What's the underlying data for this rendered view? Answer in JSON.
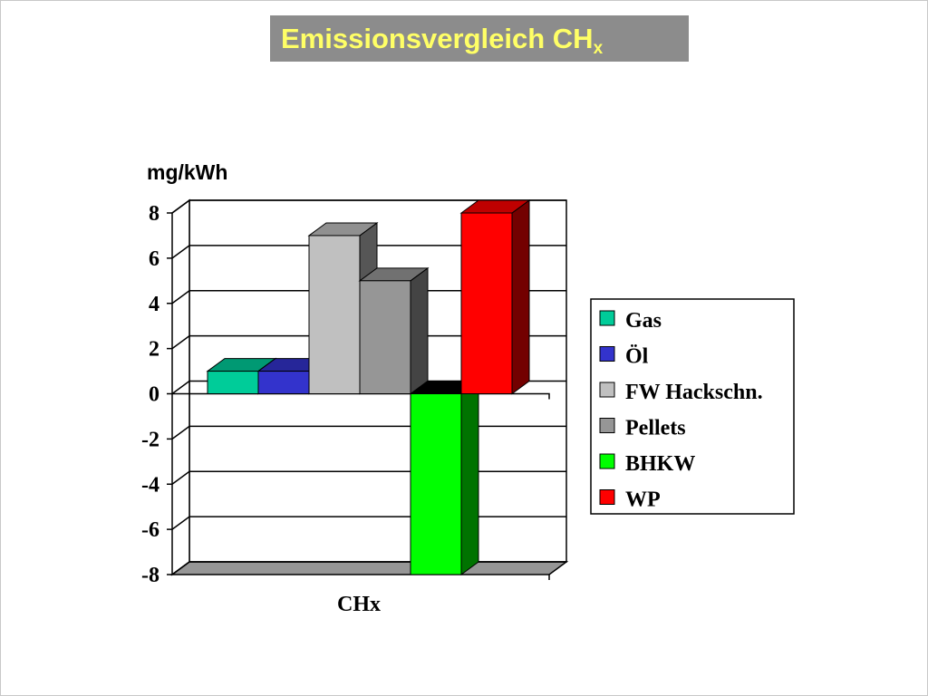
{
  "title": {
    "main": "Emissionsvergleich CH",
    "sub": "x"
  },
  "chart_data": {
    "type": "bar",
    "title": "Emissionsvergleich CHx",
    "ylabel": "mg/kWh",
    "xlabel": "",
    "categories": [
      "CHx"
    ],
    "ylim": [
      -8,
      8
    ],
    "yticks": [
      8,
      6,
      4,
      2,
      0,
      -2,
      -4,
      -6,
      -8
    ],
    "grid": true,
    "legend_position": "right",
    "series": [
      {
        "name": "Gas",
        "values": [
          1
        ],
        "color": "#00cc99"
      },
      {
        "name": "Öl",
        "values": [
          1
        ],
        "color": "#3333cc"
      },
      {
        "name": "FW Hackschn.",
        "values": [
          7
        ],
        "color": "#c0c0c0"
      },
      {
        "name": "Pellets",
        "values": [
          5
        ],
        "color": "#969696"
      },
      {
        "name": "BHKW",
        "values": [
          -8
        ],
        "color": "#00ff00"
      },
      {
        "name": "WP",
        "values": [
          8
        ],
        "color": "#ff0000"
      }
    ]
  }
}
